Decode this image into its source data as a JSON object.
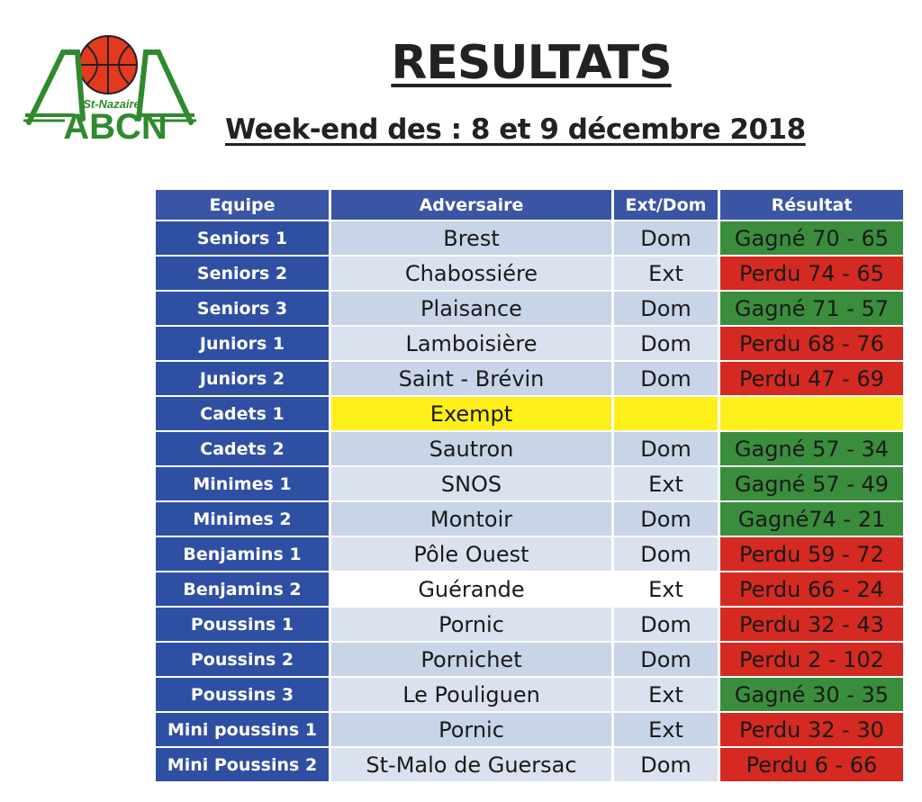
{
  "logo": {
    "label": "St-Nazaire",
    "initials": "ABCN",
    "ball_color": "#e33a1f",
    "letter_color": "#2f8a2f"
  },
  "title": "RESULTATS",
  "subtitle": "Week-end des : 8 et 9 décembre 2018",
  "table": {
    "headers": [
      "Equipe",
      "Adversaire",
      "Ext/Dom",
      "Résultat"
    ],
    "rows": [
      {
        "equipe": "Seniors 1",
        "adversaire": "Brest",
        "extdom": "Dom",
        "resultat": "Gagné 70 - 65",
        "status": "win"
      },
      {
        "equipe": "Seniors 2",
        "adversaire": "Chabossiére",
        "extdom": "Ext",
        "resultat": "Perdu 74 - 65",
        "status": "loss"
      },
      {
        "equipe": "Seniors 3",
        "adversaire": "Plaisance",
        "extdom": "Dom",
        "resultat": "Gagné 71 - 57",
        "status": "win"
      },
      {
        "equipe": "Juniors 1",
        "adversaire": "Lamboisière",
        "extdom": "Dom",
        "resultat": "Perdu 68 - 76",
        "status": "loss"
      },
      {
        "equipe": "Juniors 2",
        "adversaire": "Saint - Brévin",
        "extdom": "Dom",
        "resultat": "Perdu 47 - 69",
        "status": "loss"
      },
      {
        "equipe": "Cadets 1",
        "adversaire": "Exempt",
        "extdom": "",
        "resultat": "",
        "status": "exempt"
      },
      {
        "equipe": "Cadets 2",
        "adversaire": "Sautron",
        "extdom": "Dom",
        "resultat": "Gagné 57 - 34",
        "status": "win"
      },
      {
        "equipe": "Minimes 1",
        "adversaire": "SNOS",
        "extdom": "Ext",
        "resultat": "Gagné 57 - 49",
        "status": "win"
      },
      {
        "equipe": "Minimes 2",
        "adversaire": "Montoir",
        "extdom": "Dom",
        "resultat": "Gagné74 - 21",
        "status": "win"
      },
      {
        "equipe": "Benjamins 1",
        "adversaire": "Pôle Ouest",
        "extdom": "Dom",
        "resultat": "Perdu 59 - 72",
        "status": "loss"
      },
      {
        "equipe": "Benjamins 2",
        "adversaire": "Guérande",
        "extdom": "Ext",
        "resultat": "Perdu 66 - 24",
        "status": "loss"
      },
      {
        "equipe": "Poussins 1",
        "adversaire": "Pornic",
        "extdom": "Dom",
        "resultat": "Perdu 32 - 43",
        "status": "loss"
      },
      {
        "equipe": "Poussins 2",
        "adversaire": "Pornichet",
        "extdom": "Dom",
        "resultat": "Perdu 2 - 102",
        "status": "loss"
      },
      {
        "equipe": "Poussins 3",
        "adversaire": "Le Pouliguen",
        "extdom": "Ext",
        "resultat": "Gagné 30 - 35",
        "status": "win"
      },
      {
        "equipe": "Mini poussins 1",
        "adversaire": "Pornic",
        "extdom": "Ext",
        "resultat": "Perdu 32 - 30",
        "status": "loss"
      },
      {
        "equipe": "Mini Poussins 2",
        "adversaire": "St-Malo de Guersac",
        "extdom": "Dom",
        "resultat": "Perdu 6 - 66",
        "status": "loss"
      }
    ]
  },
  "colors": {
    "header_blue": "#3a55a4",
    "team_blue": "#2f4fa3",
    "win_green": "#3a8d3c",
    "loss_red": "#d42a22",
    "exempt_yellow": "#ffef1a"
  }
}
